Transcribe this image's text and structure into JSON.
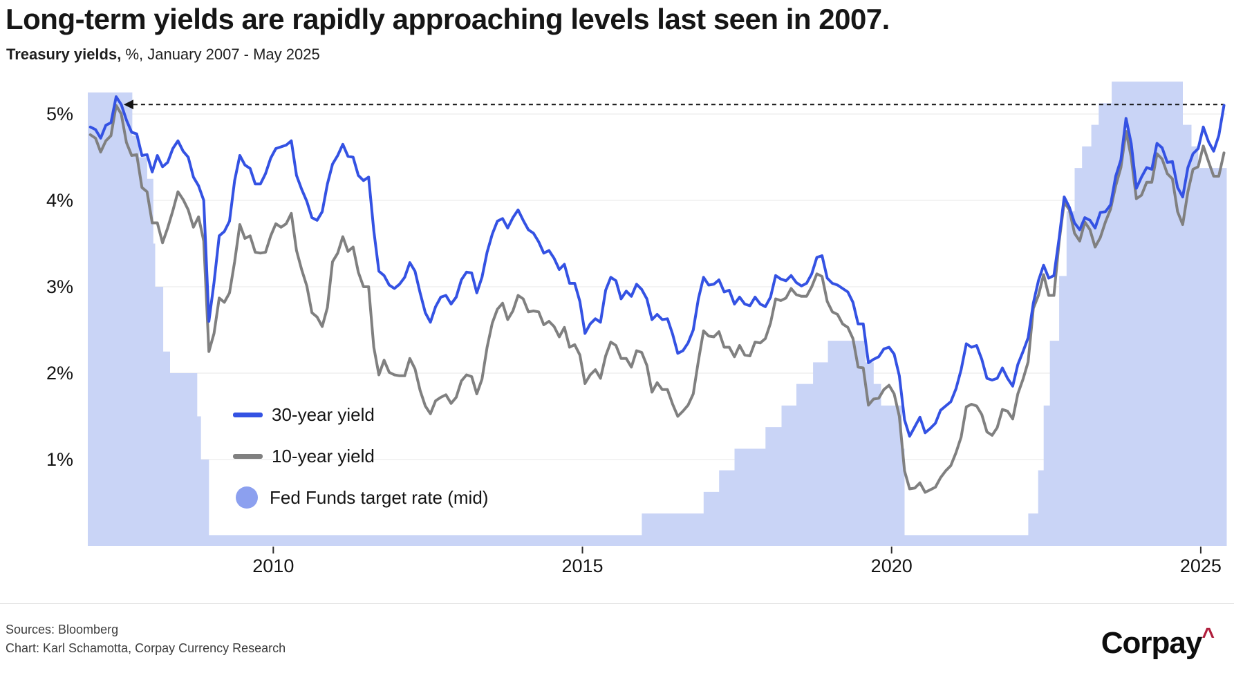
{
  "header": {
    "title": "Long-term yields are rapidly approaching levels last seen in 2007.",
    "subtitle_bold": "Treasury yields,",
    "subtitle_rest": " %, January 2007 - May 2025"
  },
  "legend": {
    "items": [
      {
        "label": "30-year yield",
        "swatch": "line",
        "color": "#3452e3"
      },
      {
        "label": "10-year yield",
        "swatch": "line",
        "color": "#808080"
      },
      {
        "label": "Fed Funds target rate (mid)",
        "swatch": "circle",
        "color": "#8ca0ef"
      }
    ]
  },
  "footer": {
    "sources": "Sources: Bloomberg",
    "credit": "Chart: Karl Schamotta, Corpay Currency Research",
    "logo_text": "Corpay",
    "logo_caret": "^",
    "logo_caret_color": "#b01e3c"
  },
  "chart_data": {
    "type": "line",
    "title": "Long-term yields are rapidly approaching levels last seen in 2007.",
    "subtitle": "Treasury yields, %, January 2007 - May 2025",
    "grid": true,
    "colors": {
      "gridline": "#efefef",
      "axis_text": "#141414",
      "fed_area_fill": "#c9d4f6",
      "annotation_line": "#141414"
    },
    "x_axis": {
      "tick_values": [
        2010,
        2015,
        2020,
        2025
      ],
      "tick_labels": [
        "2010",
        "2015",
        "2020",
        "2025"
      ],
      "range": [
        2007.0,
        2025.42
      ]
    },
    "y_axis": {
      "tick_values": [
        1,
        2,
        3,
        4,
        5
      ],
      "tick_labels": [
        "1%",
        "2%",
        "3%",
        "4%",
        "5%"
      ],
      "range": [
        0,
        5.55
      ],
      "unit": "%"
    },
    "annotation": {
      "type": "dashed_arrow_line",
      "level_pct": 5.11,
      "from_year": 2007.67,
      "to_year": 2025.38,
      "meaning": "current long-term yield level matches 2007 peak"
    },
    "series": [
      {
        "name": "30-year yield",
        "color": "#3452e3",
        "start_year": 2007,
        "interval_months": 1,
        "values": [
          4.85,
          4.82,
          4.72,
          4.87,
          4.9,
          5.2,
          5.11,
          4.93,
          4.79,
          4.77,
          4.52,
          4.53,
          4.33,
          4.52,
          4.39,
          4.44,
          4.6,
          4.69,
          4.57,
          4.5,
          4.27,
          4.17,
          4.0,
          2.6,
          3.05,
          3.59,
          3.64,
          3.76,
          4.23,
          4.52,
          4.41,
          4.37,
          4.19,
          4.19,
          4.31,
          4.49,
          4.6,
          4.62,
          4.64,
          4.69,
          4.29,
          4.13,
          3.99,
          3.8,
          3.77,
          3.87,
          4.19,
          4.42,
          4.52,
          4.65,
          4.51,
          4.5,
          4.29,
          4.23,
          4.27,
          3.65,
          3.18,
          3.13,
          3.02,
          2.98,
          3.03,
          3.11,
          3.28,
          3.18,
          2.93,
          2.7,
          2.59,
          2.77,
          2.88,
          2.9,
          2.8,
          2.88,
          3.08,
          3.17,
          3.16,
          2.93,
          3.11,
          3.4,
          3.61,
          3.76,
          3.79,
          3.68,
          3.8,
          3.89,
          3.77,
          3.66,
          3.62,
          3.52,
          3.39,
          3.42,
          3.33,
          3.2,
          3.26,
          3.04,
          3.04,
          2.83,
          2.46,
          2.57,
          2.63,
          2.59,
          2.96,
          3.11,
          3.07,
          2.86,
          2.95,
          2.89,
          3.03,
          2.97,
          2.86,
          2.62,
          2.68,
          2.62,
          2.63,
          2.45,
          2.23,
          2.26,
          2.35,
          2.5,
          2.86,
          3.11,
          3.02,
          3.03,
          3.08,
          2.94,
          2.96,
          2.8,
          2.88,
          2.8,
          2.78,
          2.88,
          2.8,
          2.77,
          2.88,
          3.13,
          3.09,
          3.07,
          3.13,
          3.05,
          3.01,
          3.04,
          3.15,
          3.34,
          3.36,
          3.1,
          3.04,
          3.02,
          2.98,
          2.94,
          2.82,
          2.57,
          2.57,
          2.12,
          2.16,
          2.19,
          2.28,
          2.3,
          2.22,
          1.97,
          1.46,
          1.27,
          1.38,
          1.49,
          1.31,
          1.36,
          1.42,
          1.57,
          1.62,
          1.67,
          1.82,
          2.04,
          2.34,
          2.3,
          2.32,
          2.16,
          1.94,
          1.92,
          1.94,
          2.06,
          1.94,
          1.85,
          2.1,
          2.25,
          2.41,
          2.81,
          3.07,
          3.25,
          3.1,
          3.13,
          3.56,
          4.04,
          3.92,
          3.74,
          3.66,
          3.8,
          3.77,
          3.68,
          3.86,
          3.87,
          3.95,
          4.28,
          4.47,
          4.95,
          4.66,
          4.14,
          4.27,
          4.38,
          4.36,
          4.66,
          4.61,
          4.44,
          4.45,
          4.15,
          4.04,
          4.38,
          4.54,
          4.6,
          4.85,
          4.68,
          4.57,
          4.75,
          5.1
        ]
      },
      {
        "name": "10-year yield",
        "color": "#808080",
        "start_year": 2007,
        "interval_months": 1,
        "values": [
          4.76,
          4.72,
          4.56,
          4.69,
          4.75,
          5.1,
          5.0,
          4.67,
          4.52,
          4.53,
          4.15,
          4.1,
          3.74,
          3.74,
          3.51,
          3.68,
          3.88,
          4.1,
          4.01,
          3.89,
          3.69,
          3.81,
          3.53,
          2.25,
          2.46,
          2.87,
          2.82,
          2.93,
          3.29,
          3.72,
          3.56,
          3.59,
          3.4,
          3.39,
          3.4,
          3.59,
          3.73,
          3.69,
          3.73,
          3.85,
          3.42,
          3.2,
          3.01,
          2.7,
          2.65,
          2.54,
          2.76,
          3.29,
          3.39,
          3.58,
          3.41,
          3.46,
          3.17,
          3.0,
          3.0,
          2.3,
          1.98,
          2.15,
          2.01,
          1.98,
          1.97,
          1.97,
          2.17,
          2.05,
          1.8,
          1.62,
          1.53,
          1.68,
          1.72,
          1.75,
          1.65,
          1.72,
          1.91,
          1.98,
          1.96,
          1.76,
          1.93,
          2.3,
          2.58,
          2.74,
          2.81,
          2.62,
          2.72,
          2.9,
          2.86,
          2.71,
          2.72,
          2.71,
          2.56,
          2.6,
          2.54,
          2.42,
          2.53,
          2.3,
          2.33,
          2.21,
          1.88,
          1.98,
          2.04,
          1.94,
          2.2,
          2.36,
          2.32,
          2.17,
          2.17,
          2.07,
          2.26,
          2.24,
          2.09,
          1.78,
          1.89,
          1.81,
          1.81,
          1.64,
          1.5,
          1.56,
          1.63,
          1.76,
          2.14,
          2.49,
          2.43,
          2.42,
          2.48,
          2.3,
          2.3,
          2.19,
          2.32,
          2.21,
          2.2,
          2.36,
          2.35,
          2.4,
          2.58,
          2.86,
          2.84,
          2.87,
          2.98,
          2.91,
          2.89,
          2.89,
          3.0,
          3.15,
          3.12,
          2.83,
          2.71,
          2.68,
          2.57,
          2.53,
          2.4,
          2.07,
          2.06,
          1.63,
          1.7,
          1.71,
          1.81,
          1.86,
          1.76,
          1.5,
          0.87,
          0.66,
          0.67,
          0.73,
          0.62,
          0.65,
          0.68,
          0.79,
          0.87,
          0.93,
          1.08,
          1.26,
          1.61,
          1.64,
          1.62,
          1.52,
          1.32,
          1.28,
          1.37,
          1.58,
          1.56,
          1.47,
          1.76,
          1.93,
          2.13,
          2.75,
          2.9,
          3.14,
          2.9,
          2.9,
          3.52,
          3.98,
          3.89,
          3.62,
          3.53,
          3.75,
          3.66,
          3.46,
          3.57,
          3.75,
          3.9,
          4.17,
          4.38,
          4.8,
          4.5,
          4.02,
          4.06,
          4.21,
          4.21,
          4.54,
          4.48,
          4.31,
          4.25,
          3.87,
          3.72,
          4.1,
          4.36,
          4.39,
          4.63,
          4.45,
          4.28,
          4.28,
          4.55
        ]
      }
    ],
    "fed_funds_target_mid": {
      "name": "Fed Funds target rate (mid)",
      "fill": "#c9d4f6",
      "end_year": 2025.42,
      "steps": [
        [
          2007.0,
          5.25
        ],
        [
          2007.72,
          4.75
        ],
        [
          2007.83,
          4.5
        ],
        [
          2007.96,
          4.25
        ],
        [
          2008.06,
          3.5
        ],
        [
          2008.09,
          3.0
        ],
        [
          2008.22,
          2.25
        ],
        [
          2008.33,
          2.0
        ],
        [
          2008.77,
          1.5
        ],
        [
          2008.83,
          1.0
        ],
        [
          2008.96,
          0.125
        ],
        [
          2015.96,
          0.375
        ],
        [
          2016.96,
          0.625
        ],
        [
          2017.21,
          0.875
        ],
        [
          2017.46,
          1.125
        ],
        [
          2017.96,
          1.375
        ],
        [
          2018.22,
          1.625
        ],
        [
          2018.46,
          1.875
        ],
        [
          2018.73,
          2.125
        ],
        [
          2018.97,
          2.375
        ],
        [
          2019.58,
          2.125
        ],
        [
          2019.71,
          1.875
        ],
        [
          2019.83,
          1.625
        ],
        [
          2020.17,
          1.125
        ],
        [
          2020.21,
          0.125
        ],
        [
          2022.21,
          0.375
        ],
        [
          2022.37,
          0.875
        ],
        [
          2022.46,
          1.625
        ],
        [
          2022.56,
          2.375
        ],
        [
          2022.71,
          3.125
        ],
        [
          2022.83,
          3.875
        ],
        [
          2022.96,
          4.375
        ],
        [
          2023.08,
          4.625
        ],
        [
          2023.23,
          4.875
        ],
        [
          2023.35,
          5.125
        ],
        [
          2023.56,
          5.375
        ],
        [
          2024.71,
          4.875
        ],
        [
          2024.85,
          4.625
        ],
        [
          2024.96,
          4.375
        ]
      ]
    }
  }
}
